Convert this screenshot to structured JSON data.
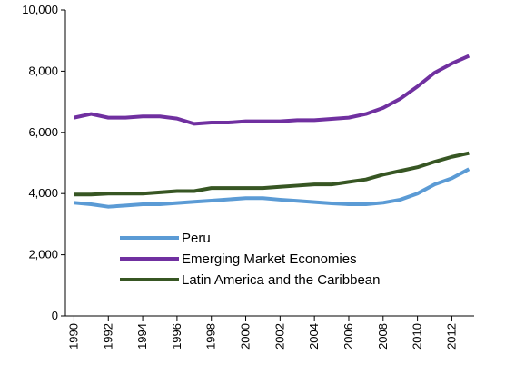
{
  "chart_data": {
    "type": "line",
    "x": [
      1990,
      1991,
      1992,
      1993,
      1994,
      1995,
      1996,
      1997,
      1998,
      1999,
      2000,
      2001,
      2002,
      2003,
      2004,
      2005,
      2006,
      2007,
      2008,
      2009,
      2010,
      2011,
      2012,
      2013
    ],
    "series": [
      {
        "name": "Peru",
        "color": "#5b9bd5",
        "values": [
          3700,
          3650,
          3570,
          3610,
          3650,
          3650,
          3690,
          3730,
          3770,
          3810,
          3850,
          3850,
          3800,
          3760,
          3720,
          3680,
          3650,
          3650,
          3700,
          3800,
          4000,
          4300,
          4500,
          4800
        ]
      },
      {
        "name": "Emerging Market Economies",
        "color": "#7030a0",
        "values": [
          6480,
          6600,
          6480,
          6480,
          6520,
          6520,
          6450,
          6280,
          6320,
          6320,
          6360,
          6360,
          6360,
          6400,
          6400,
          6440,
          6480,
          6600,
          6800,
          7100,
          7500,
          7950,
          8250,
          8500
        ]
      },
      {
        "name": "Latin America and the Caribbean",
        "color": "#375623",
        "values": [
          3970,
          3970,
          4000,
          4000,
          4000,
          4040,
          4080,
          4080,
          4180,
          4180,
          4180,
          4180,
          4220,
          4260,
          4300,
          4300,
          4380,
          4460,
          4620,
          4740,
          4860,
          5040,
          5200,
          5320
        ]
      }
    ],
    "xlim": [
      1989.5,
      2013.3
    ],
    "xticks": [
      1990,
      1992,
      1994,
      1996,
      1998,
      2000,
      2002,
      2004,
      2006,
      2008,
      2010,
      2012
    ],
    "ylim": [
      0,
      10000
    ],
    "yticks": [
      0,
      {
        "value": 2000,
        "label": "2,000"
      },
      {
        "value": 4000,
        "label": "4,000"
      },
      {
        "value": 6000,
        "label": "6,000"
      },
      {
        "value": 8000,
        "label": "8,000"
      },
      {
        "value": 10000,
        "label": "10,000"
      }
    ],
    "grid": false,
    "legend": "center-left"
  }
}
